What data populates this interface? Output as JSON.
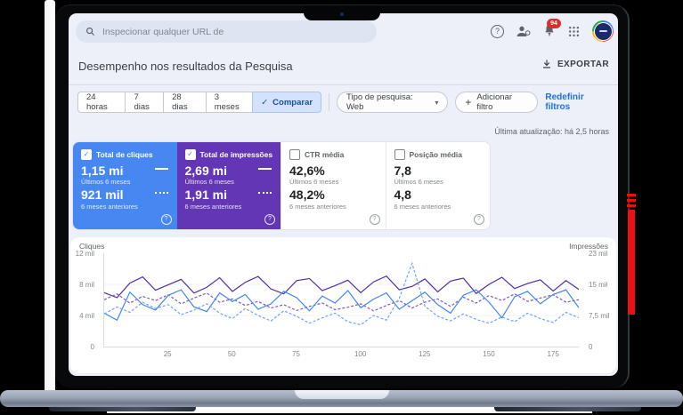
{
  "topbar": {
    "search_placeholder": "Inspecionar qualquer URL de",
    "notification_count": "94"
  },
  "header": {
    "title": "Desempenho nos resultados da Pesquisa",
    "export_label": "EXPORTAR"
  },
  "filters": {
    "ranges": [
      "24 horas",
      "7 dias",
      "28 dias",
      "3 meses"
    ],
    "compare_label": "Comparar",
    "type_label": "Tipo de pesquisa: Web",
    "add_filter_label": "Adicionar filtro",
    "reset_label": "Redefinir filtros",
    "last_update": "Última atualização: há 2,5 horas"
  },
  "icons": {
    "help": "?",
    "check": "✓",
    "dropdown": "▾",
    "add": "+"
  },
  "cards": [
    {
      "label": "Total de cliques",
      "checked": true,
      "accent": "#4787f2",
      "current": "1,15 mi",
      "current_period": "Últimos 6 meses",
      "previous": "921 mil",
      "previous_period": "6 meses anteriores"
    },
    {
      "label": "Total de impressões",
      "checked": true,
      "accent": "#6236b5",
      "current": "2,69 mi",
      "current_period": "Últimos 6 meses",
      "previous": "1,91 mi",
      "previous_period": "6 meses anteriores"
    },
    {
      "label": "CTR média",
      "checked": false,
      "current": "42,6%",
      "current_period": "Últimos 6 meses",
      "previous": "48,2%",
      "previous_period": "6 meses anteriores"
    },
    {
      "label": "Posição média",
      "checked": false,
      "current": "7,8",
      "current_period": "Últimos 6 meses",
      "previous": "4,8",
      "previous_period": "6 meses anteriores"
    }
  ],
  "chart_data": {
    "type": "line",
    "x": {
      "step": 5,
      "max": 185,
      "ticks": [
        25,
        50,
        75,
        100,
        125,
        150,
        175
      ]
    },
    "left_axis": {
      "label": "Cliques",
      "ticks": [
        "12 mil",
        "8 mil",
        "4 mil",
        "0"
      ],
      "max": 12000
    },
    "right_axis": {
      "label": "Impressões",
      "ticks": [
        "23 mil",
        "15 mil",
        "7,5 mil",
        "0"
      ],
      "max": 22500
    },
    "grid": "horizontal-faint",
    "legend_position": "none (encoded in metric cards)",
    "series": [
      {
        "name": "Total de impressões — últimos 6 meses",
        "color": "#512da8",
        "dashed": false,
        "axis": "right",
        "values": [
          13000,
          11800,
          15300,
          16800,
          13600,
          14900,
          16200,
          12900,
          14300,
          16600,
          13300,
          15500,
          16900,
          13900,
          12700,
          15900,
          16400,
          13500,
          14700,
          16000,
          13000,
          15600,
          17000,
          13700,
          14500,
          16300,
          13200,
          15800,
          16500,
          12800,
          15000,
          16700,
          14000,
          15200,
          16100,
          13400,
          15900,
          13800
        ]
      },
      {
        "name": "Total de impressões — 6 meses anteriores",
        "color": "#7e57c2",
        "dashed": true,
        "axis": "right",
        "values": [
          11300,
          12700,
          10500,
          12100,
          11100,
          12500,
          10300,
          11700,
          12900,
          10700,
          11500,
          9900,
          10900,
          9300,
          10100,
          8700,
          9700,
          10500,
          8900,
          9500,
          10300,
          8600,
          9900,
          11100,
          9300,
          10700,
          11500,
          9700,
          11900,
          10500,
          12300,
          11100,
          12700,
          10900,
          11700,
          12500,
          10700,
          11300
        ]
      },
      {
        "name": "Total de cliques — últimos 6 meses",
        "color": "#4285f4",
        "dashed": false,
        "axis": "left",
        "values": [
          4300,
          3400,
          7000,
          5400,
          4700,
          6600,
          7300,
          5100,
          4500,
          6900,
          5800,
          6700,
          4800,
          5500,
          7100,
          6300,
          4600,
          6500,
          5600,
          7200,
          5000,
          6100,
          6900,
          4800,
          5900,
          7000,
          5400,
          4300,
          6600,
          7300,
          5700,
          3700,
          6400,
          7100,
          5500,
          6700,
          7300,
          5000
        ]
      },
      {
        "name": "Total de cliques — 6 meses anteriores",
        "color": "#6fa3f7",
        "dashed": true,
        "axis": "left",
        "values": [
          4200,
          5100,
          4400,
          5700,
          4900,
          5400,
          4100,
          4700,
          5500,
          4300,
          3600,
          4900,
          4000,
          3300,
          4600,
          3900,
          3000,
          3700,
          4300,
          3200,
          2800,
          4000,
          3400,
          6200,
          10700,
          5200,
          3900,
          3300,
          4200,
          3500,
          3000,
          3800,
          3200,
          4300,
          3600,
          3100,
          4400,
          3700
        ]
      }
    ]
  },
  "colors": {
    "link_blue": "#1a73e8",
    "compare_chip_bg": "#d3e3fd",
    "notification_badge": "#d93025",
    "clicks_card": "#4787f2",
    "impressions_card": "#6236b5",
    "red_marker": "#ec1111",
    "deck_silver": "#9aa4b6"
  }
}
